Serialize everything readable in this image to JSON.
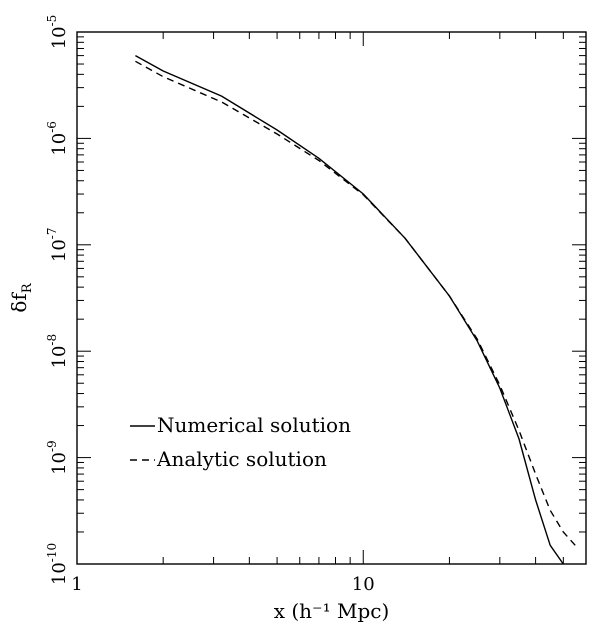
{
  "chart_data": {
    "type": "line",
    "xlabel": "x (h⁻¹ Mpc)",
    "ylabel": "δf",
    "ylabel_sub": "R",
    "xscale": "log",
    "yscale": "log",
    "xlim": [
      1,
      60
    ],
    "ylim": [
      1e-10,
      1e-05
    ],
    "x_tick_labels": [
      {
        "value": 1,
        "label": "1"
      },
      {
        "value": 10,
        "label": "10"
      }
    ],
    "y_tick_labels": [
      {
        "value": 1e-05,
        "base": "10",
        "exp": "-5"
      },
      {
        "value": 1e-06,
        "base": "10",
        "exp": "-6"
      },
      {
        "value": 1e-07,
        "base": "10",
        "exp": "-7"
      },
      {
        "value": 1e-08,
        "base": "10",
        "exp": "-8"
      },
      {
        "value": 1e-09,
        "base": "10",
        "exp": "-9"
      },
      {
        "value": 1e-10,
        "base": "10",
        "exp": "-10"
      }
    ],
    "grid": false,
    "legend_placement": "bottom-left",
    "series": [
      {
        "name": "Numerical solution",
        "style": "solid",
        "x": [
          1.6,
          2.0,
          3.2,
          5.0,
          7.0,
          10.0,
          14.0,
          20.0,
          25.0,
          30.0,
          35.0,
          40.0,
          45.0,
          50.0
        ],
        "y": [
          6e-06,
          4.3e-06,
          2.5e-06,
          1.2e-06,
          6.5e-07,
          3e-07,
          1.15e-07,
          3.3e-08,
          1.25e-08,
          4.5e-09,
          1.5e-09,
          4e-10,
          1.5e-10,
          1e-10
        ]
      },
      {
        "name": "Analytic solution",
        "style": "dashed",
        "x": [
          1.6,
          2.0,
          3.2,
          5.0,
          7.0,
          10.0,
          14.0,
          20.0,
          25.0,
          30.0,
          35.0,
          40.0,
          45.0,
          50.0,
          55.0
        ],
        "y": [
          5.3e-06,
          3.8e-06,
          2.2e-06,
          1.1e-06,
          6.2e-07,
          2.95e-07,
          1.15e-07,
          3.3e-08,
          1.3e-08,
          4.8e-09,
          1.8e-09,
          7e-10,
          3.2e-10,
          2e-10,
          1.5e-10
        ]
      }
    ]
  }
}
